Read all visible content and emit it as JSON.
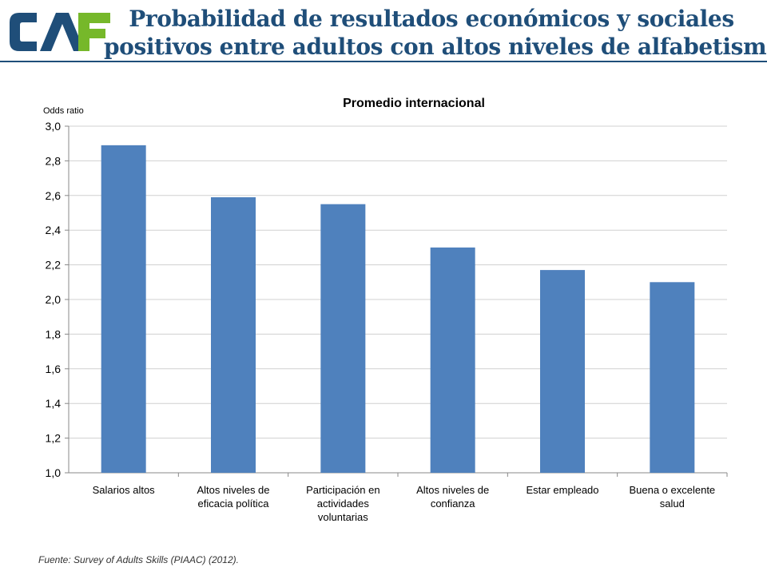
{
  "header": {
    "logo_text": "CAF",
    "title_line1": "Probabilidad de resultados económicos y sociales",
    "title_line2": "positivos entre adultos con altos niveles de alfabetismo"
  },
  "colors": {
    "bar": "#4f81bd",
    "title": "#1f4e79",
    "logo_blue": "#1f4e79",
    "logo_green": "#76b82a",
    "grid": "#d0d0d0"
  },
  "chart_data": {
    "type": "bar",
    "title": "Promedio internacional",
    "ylabel": "Odds ratio",
    "xlabel": "",
    "ylim": [
      1.0,
      3.0
    ],
    "yticks": [
      "1,0",
      "1,2",
      "1,4",
      "1,6",
      "1,8",
      "2,0",
      "2,2",
      "2,4",
      "2,6",
      "2,8",
      "3,0"
    ],
    "grid": true,
    "categories": [
      [
        "Salarios altos"
      ],
      [
        "Altos niveles de",
        "eficacia política"
      ],
      [
        "Participación en",
        "actividades",
        "voluntarias"
      ],
      [
        "Altos niveles de",
        "confianza"
      ],
      [
        "Estar empleado"
      ],
      [
        "Buena o excelente",
        "salud"
      ]
    ],
    "values": [
      2.89,
      2.59,
      2.55,
      2.3,
      2.17,
      2.1
    ]
  },
  "footer": {
    "source": "Fuente: Survey of Adults Skills (PIAAC) (2012)."
  }
}
